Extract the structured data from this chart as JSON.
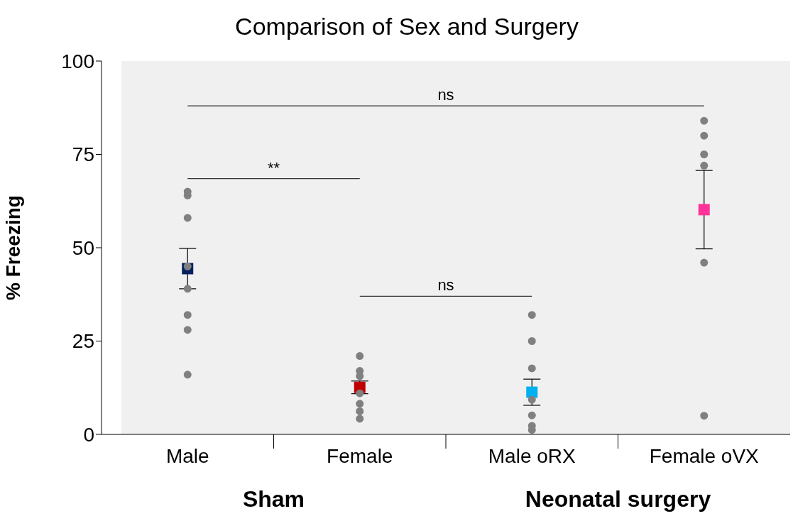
{
  "chart_data": {
    "type": "scatter",
    "title": "Comparison of Sex and Surgery",
    "ylabel": "% Freezing",
    "categories": [
      "Male",
      "Female",
      "Male oRX",
      "Female oVX"
    ],
    "ylim": [
      0,
      100
    ],
    "yticks": [
      0,
      25,
      50,
      75,
      100
    ],
    "marker": "circle",
    "series": [
      {
        "type": "scatter",
        "color": "#808080",
        "x": [
          "Male",
          "Male",
          "Male",
          "Male",
          "Male",
          "Male",
          "Male",
          "Male",
          "Female",
          "Female",
          "Female",
          "Female",
          "Female",
          "Female",
          "Female",
          "Male oRX",
          "Male oRX",
          "Male oRX",
          "Male oRX",
          "Male oRX",
          "Male oRX",
          "Male oRX",
          "Female oVX",
          "Female oVX",
          "Female oVX",
          "Female oVX",
          "Female oVX",
          "Female oVX"
        ],
        "values": [
          65,
          64,
          58,
          45,
          39,
          32,
          28,
          16,
          21,
          17,
          15.6,
          11,
          8.2,
          6.2,
          4.2,
          32,
          25,
          17.7,
          9.3,
          5.1,
          2.3,
          1.2,
          84,
          80,
          75,
          72,
          46,
          5
        ]
      },
      {
        "type": "scatter",
        "marker": "square",
        "colors": [
          "#002060",
          "#c00000",
          "#00b0f0",
          "#ff3399"
        ],
        "values": [
          44.4,
          12.6,
          11.3,
          60.2
        ],
        "errors": [
          5.4,
          1.7,
          3.5,
          10.5
        ]
      }
    ],
    "annotations": [
      "**",
      "ns",
      "ns",
      "Sham",
      "Neonatal surgery"
    ]
  }
}
